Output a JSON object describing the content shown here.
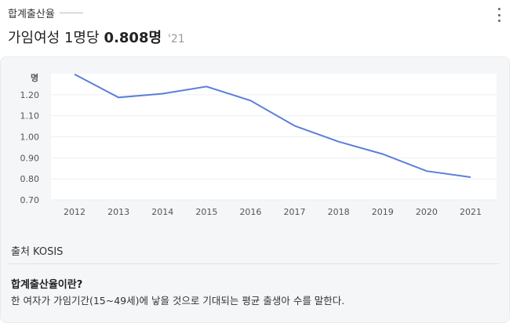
{
  "header": {
    "label": "합계출산율",
    "metric_prefix": "가임여성 1명당",
    "value": "0.808명",
    "year": "'21"
  },
  "footer": {
    "source": "출처 KOSIS",
    "definition_title": "합계출산율이란?",
    "definition_body": "한 여자가 가임기간(15~49세)에 낳을 것으로 기대되는 평균 출생아 수를 말한다."
  },
  "colors": {
    "line": "#5b7fd8",
    "card_bg": "#f4f6f8",
    "plot_bg": "#ffffff"
  },
  "icons": {
    "more": "more-vertical-icon"
  },
  "chart_data": {
    "type": "line",
    "title": "",
    "xlabel": "",
    "ylabel": "명",
    "ylim": [
      0.7,
      1.3
    ],
    "yticks": [
      "0.70",
      "0.80",
      "0.90",
      "1.00",
      "1.10",
      "1.20"
    ],
    "grid": true,
    "categories": [
      "2012",
      "2013",
      "2014",
      "2015",
      "2016",
      "2017",
      "2018",
      "2019",
      "2020",
      "2021"
    ],
    "series": [
      {
        "values": [
          1.297,
          1.187,
          1.205,
          1.239,
          1.172,
          1.052,
          0.977,
          0.918,
          0.837,
          0.808
        ]
      }
    ]
  }
}
